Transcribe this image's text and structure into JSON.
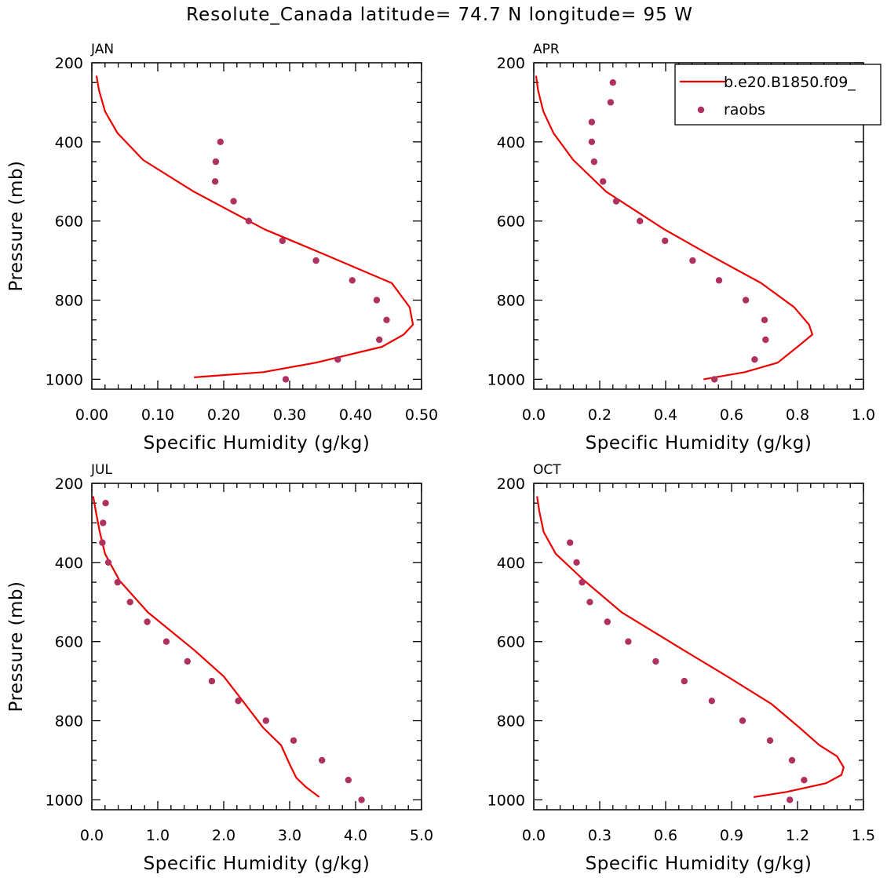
{
  "figure": {
    "title": "Resolute_Canada  latitude= 74.7 N longitude= 95 W"
  },
  "legend": {
    "model_label": "b.e20.B1850.f09_",
    "obs_label": "raobs"
  },
  "colors": {
    "model_line": "#ee0000",
    "obs_marker": "#b03060",
    "axes": "#000000"
  },
  "chart_data": [
    {
      "type": "line",
      "panel_label": "JAN",
      "xlabel": "Specific Humidity (g/kg)",
      "ylabel": "Pressure (mb)",
      "xlim": [
        0,
        0.5
      ],
      "ylim": [
        1025,
        200
      ],
      "y_reversed": true,
      "xticks": [
        0.0,
        0.1,
        0.2,
        0.3,
        0.4,
        0.5
      ],
      "xtick_labels": [
        "0.00",
        "0.10",
        "0.20",
        "0.30",
        "0.40",
        "0.50"
      ],
      "yticks": [
        200,
        400,
        600,
        800,
        1000
      ],
      "ytick_labels": [
        "200",
        "400",
        "600",
        "800",
        "1000"
      ],
      "series": [
        {
          "name": "b.e20.B1850.f09_",
          "kind": "line",
          "points": [
            [
              0.007,
              233
            ],
            [
              0.011,
              270
            ],
            [
              0.02,
              323
            ],
            [
              0.039,
              378
            ],
            [
              0.078,
              446
            ],
            [
              0.155,
              526
            ],
            [
              0.262,
              621
            ],
            [
              0.358,
              688
            ],
            [
              0.455,
              757
            ],
            [
              0.482,
              818
            ],
            [
              0.487,
              862
            ],
            [
              0.473,
              887
            ],
            [
              0.44,
              918
            ],
            [
              0.34,
              958
            ],
            [
              0.26,
              982
            ],
            [
              0.155,
              995
            ]
          ]
        },
        {
          "name": "raobs",
          "kind": "scatter",
          "points": [
            [
              0.195,
              400
            ],
            [
              0.188,
              450
            ],
            [
              0.187,
              500
            ],
            [
              0.215,
              550
            ],
            [
              0.238,
              600
            ],
            [
              0.289,
              650
            ],
            [
              0.34,
              700
            ],
            [
              0.395,
              750
            ],
            [
              0.432,
              800
            ],
            [
              0.447,
              850
            ],
            [
              0.436,
              900
            ],
            [
              0.373,
              950
            ],
            [
              0.294,
              1000
            ]
          ]
        }
      ]
    },
    {
      "type": "line",
      "panel_label": "APR",
      "xlabel": "Specific Humidity (g/kg)",
      "ylabel": "",
      "xlim": [
        0,
        1.0
      ],
      "ylim": [
        1025,
        200
      ],
      "y_reversed": true,
      "xticks": [
        0.0,
        0.2,
        0.4,
        0.6,
        0.8,
        1.0
      ],
      "xtick_labels": [
        "0.0",
        "0.2",
        "0.4",
        "0.6",
        "0.8",
        "1.0"
      ],
      "yticks": [
        200,
        400,
        600,
        800,
        1000
      ],
      "ytick_labels": [
        "200",
        "400",
        "600",
        "800",
        "1000"
      ],
      "series": [
        {
          "name": "b.e20.B1850.f09_",
          "kind": "line",
          "points": [
            [
              0.007,
              233
            ],
            [
              0.013,
              270
            ],
            [
              0.029,
              323
            ],
            [
              0.06,
              378
            ],
            [
              0.12,
              446
            ],
            [
              0.22,
              526
            ],
            [
              0.396,
              621
            ],
            [
              0.538,
              688
            ],
            [
              0.69,
              757
            ],
            [
              0.79,
              818
            ],
            [
              0.835,
              862
            ],
            [
              0.845,
              887
            ],
            [
              0.8,
              918
            ],
            [
              0.74,
              958
            ],
            [
              0.64,
              982
            ],
            [
              0.515,
              1000
            ]
          ]
        },
        {
          "name": "raobs",
          "kind": "scatter",
          "points": [
            [
              0.24,
              250
            ],
            [
              0.233,
              300
            ],
            [
              0.176,
              350
            ],
            [
              0.176,
              400
            ],
            [
              0.183,
              450
            ],
            [
              0.21,
              500
            ],
            [
              0.25,
              550
            ],
            [
              0.322,
              600
            ],
            [
              0.398,
              650
            ],
            [
              0.482,
              700
            ],
            [
              0.562,
              750
            ],
            [
              0.643,
              800
            ],
            [
              0.7,
              850
            ],
            [
              0.703,
              900
            ],
            [
              0.67,
              950
            ],
            [
              0.548,
              1000
            ]
          ]
        }
      ]
    },
    {
      "type": "line",
      "panel_label": "JUL",
      "xlabel": "Specific Humidity (g/kg)",
      "ylabel": "Pressure (mb)",
      "xlim": [
        0,
        5.0
      ],
      "ylim": [
        1025,
        200
      ],
      "y_reversed": true,
      "xticks": [
        0.0,
        1.0,
        2.0,
        3.0,
        4.0,
        5.0
      ],
      "xtick_labels": [
        "0.0",
        "1.0",
        "2.0",
        "3.0",
        "4.0",
        "5.0"
      ],
      "yticks": [
        200,
        400,
        600,
        800,
        1000
      ],
      "ytick_labels": [
        "200",
        "400",
        "600",
        "800",
        "1000"
      ],
      "series": [
        {
          "name": "b.e20.B1850.f09_",
          "kind": "line",
          "points": [
            [
              0.02,
              233
            ],
            [
              0.06,
              270
            ],
            [
              0.12,
              323
            ],
            [
              0.2,
              378
            ],
            [
              0.42,
              446
            ],
            [
              0.85,
              526
            ],
            [
              1.55,
              621
            ],
            [
              2.0,
              688
            ],
            [
              2.32,
              757
            ],
            [
              2.6,
              818
            ],
            [
              2.87,
              862
            ],
            [
              3.0,
              910
            ],
            [
              3.1,
              944
            ],
            [
              3.25,
              968
            ],
            [
              3.45,
              993
            ]
          ]
        },
        {
          "name": "raobs",
          "kind": "scatter",
          "points": [
            [
              0.21,
              250
            ],
            [
              0.17,
              300
            ],
            [
              0.16,
              350
            ],
            [
              0.25,
              400
            ],
            [
              0.39,
              450
            ],
            [
              0.58,
              500
            ],
            [
              0.84,
              550
            ],
            [
              1.13,
              600
            ],
            [
              1.45,
              650
            ],
            [
              1.82,
              700
            ],
            [
              2.22,
              750
            ],
            [
              2.64,
              800
            ],
            [
              3.06,
              850
            ],
            [
              3.49,
              900
            ],
            [
              3.89,
              950
            ],
            [
              4.09,
              1000
            ]
          ]
        }
      ]
    },
    {
      "type": "line",
      "panel_label": "OCT",
      "xlabel": "Specific Humidity (g/kg)",
      "ylabel": "",
      "xlim": [
        0,
        1.5
      ],
      "ylim": [
        1025,
        200
      ],
      "y_reversed": true,
      "xticks": [
        0.0,
        0.3,
        0.6,
        0.9,
        1.2,
        1.5
      ],
      "xtick_labels": [
        "0.0",
        "0.3",
        "0.6",
        "0.9",
        "1.2",
        "1.5"
      ],
      "yticks": [
        200,
        400,
        600,
        800,
        1000
      ],
      "ytick_labels": [
        "200",
        "400",
        "600",
        "800",
        "1000"
      ],
      "series": [
        {
          "name": "b.e20.B1850.f09_",
          "kind": "line",
          "points": [
            [
              0.015,
              233
            ],
            [
              0.025,
              270
            ],
            [
              0.045,
              323
            ],
            [
              0.1,
              378
            ],
            [
              0.23,
              446
            ],
            [
              0.4,
              526
            ],
            [
              0.68,
              621
            ],
            [
              0.88,
              688
            ],
            [
              1.08,
              757
            ],
            [
              1.21,
              818
            ],
            [
              1.3,
              862
            ],
            [
              1.38,
              890
            ],
            [
              1.41,
              918
            ],
            [
              1.4,
              937
            ],
            [
              1.33,
              958
            ],
            [
              1.15,
              980
            ],
            [
              1.0,
              993
            ]
          ]
        },
        {
          "name": "raobs",
          "kind": "scatter",
          "points": [
            [
              0.165,
              350
            ],
            [
              0.195,
              400
            ],
            [
              0.22,
              450
            ],
            [
              0.255,
              500
            ],
            [
              0.335,
              550
            ],
            [
              0.43,
              600
            ],
            [
              0.555,
              650
            ],
            [
              0.685,
              700
            ],
            [
              0.81,
              750
            ],
            [
              0.95,
              800
            ],
            [
              1.075,
              850
            ],
            [
              1.175,
              900
            ],
            [
              1.23,
              950
            ],
            [
              1.165,
              1000
            ]
          ]
        }
      ]
    }
  ]
}
